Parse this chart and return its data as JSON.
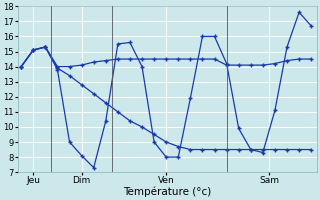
{
  "xlabel": "Température (°c)",
  "background_color": "#cce8ea",
  "grid_color": "#b8d8da",
  "line_color": "#1a3aaa",
  "ylim": [
    7,
    18
  ],
  "yticks": [
    7,
    8,
    9,
    10,
    11,
    12,
    13,
    14,
    15,
    16,
    17,
    18
  ],
  "day_labels": [
    "Jeu",
    "Dim",
    "Ven",
    "Sam"
  ],
  "series1_x": [
    0,
    1,
    2,
    3,
    4,
    5,
    6,
    7,
    8,
    9,
    10,
    11,
    12,
    13,
    14,
    15,
    16,
    17,
    18,
    19,
    20,
    21,
    22,
    23,
    24
  ],
  "series1_y": [
    14.0,
    15.1,
    15.3,
    13.8,
    9.0,
    8.1,
    7.3,
    10.4,
    15.5,
    15.6,
    14.0,
    9.0,
    8.0,
    8.0,
    11.9,
    16.0,
    16.0,
    14.2,
    9.9,
    8.5,
    8.3,
    11.1,
    15.3,
    17.6,
    16.7
  ],
  "series2_x": [
    0,
    1,
    2,
    3,
    4,
    5,
    6,
    7,
    8,
    9,
    10,
    11,
    12,
    13,
    14,
    15,
    16,
    17,
    18,
    19,
    20,
    21,
    22,
    23,
    24
  ],
  "series2_y": [
    14.0,
    15.1,
    15.3,
    14.0,
    14.0,
    14.1,
    14.3,
    14.4,
    14.5,
    14.5,
    14.5,
    14.5,
    14.5,
    14.5,
    14.5,
    14.5,
    14.5,
    14.1,
    14.1,
    14.1,
    14.1,
    14.2,
    14.4,
    14.5,
    14.5
  ],
  "series3_x": [
    0,
    1,
    2,
    3,
    4,
    5,
    6,
    7,
    8,
    9,
    10,
    11,
    12,
    13,
    14,
    15,
    16,
    17,
    18,
    19,
    20,
    21,
    22,
    23,
    24
  ],
  "series3_y": [
    14.0,
    15.1,
    15.3,
    13.9,
    13.4,
    12.8,
    12.2,
    11.6,
    11.0,
    10.4,
    10.0,
    9.5,
    9.0,
    8.7,
    8.5,
    8.5,
    8.5,
    8.5,
    8.5,
    8.5,
    8.5,
    8.5,
    8.5,
    8.5,
    8.5
  ],
  "xmin": -0.3,
  "xmax": 24.5
}
